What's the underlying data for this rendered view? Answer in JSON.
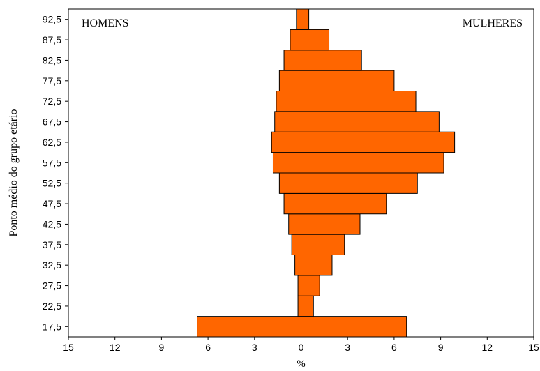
{
  "chart_data": {
    "type": "bar",
    "orientation": "horizontal",
    "layout": "population-pyramid",
    "categories": [
      "17,5",
      "22,5",
      "27,5",
      "32,5",
      "37,5",
      "42,5",
      "47,5",
      "52,5",
      "57,5",
      "62,5",
      "67,5",
      "72,5",
      "77,5",
      "82,5",
      "87,5",
      "92,5"
    ],
    "series": [
      {
        "name": "HOMENS",
        "side": "left",
        "values": [
          6.7,
          0.2,
          0.2,
          0.4,
          0.6,
          0.8,
          1.1,
          1.4,
          1.8,
          1.9,
          1.7,
          1.6,
          1.4,
          1.1,
          0.7,
          0.3
        ]
      },
      {
        "name": "MULHERES",
        "side": "right",
        "values": [
          6.8,
          0.8,
          1.2,
          2.0,
          2.8,
          3.8,
          5.5,
          7.5,
          9.2,
          9.9,
          8.9,
          7.4,
          6.0,
          3.9,
          1.8,
          0.5
        ]
      }
    ],
    "xlabel": "%",
    "ylabel": "Ponto médio do grupo etário",
    "xlim": [
      -15,
      15
    ],
    "xticks": [
      -15,
      -12,
      -9,
      -6,
      -3,
      0,
      3,
      6,
      9,
      12,
      15
    ],
    "xtick_labels": [
      "15",
      "12",
      "9",
      "6",
      "3",
      "0",
      "3",
      "6",
      "9",
      "12",
      "15"
    ],
    "bar_color": "#ff6600",
    "edge_color": "#000000",
    "grid": false
  }
}
